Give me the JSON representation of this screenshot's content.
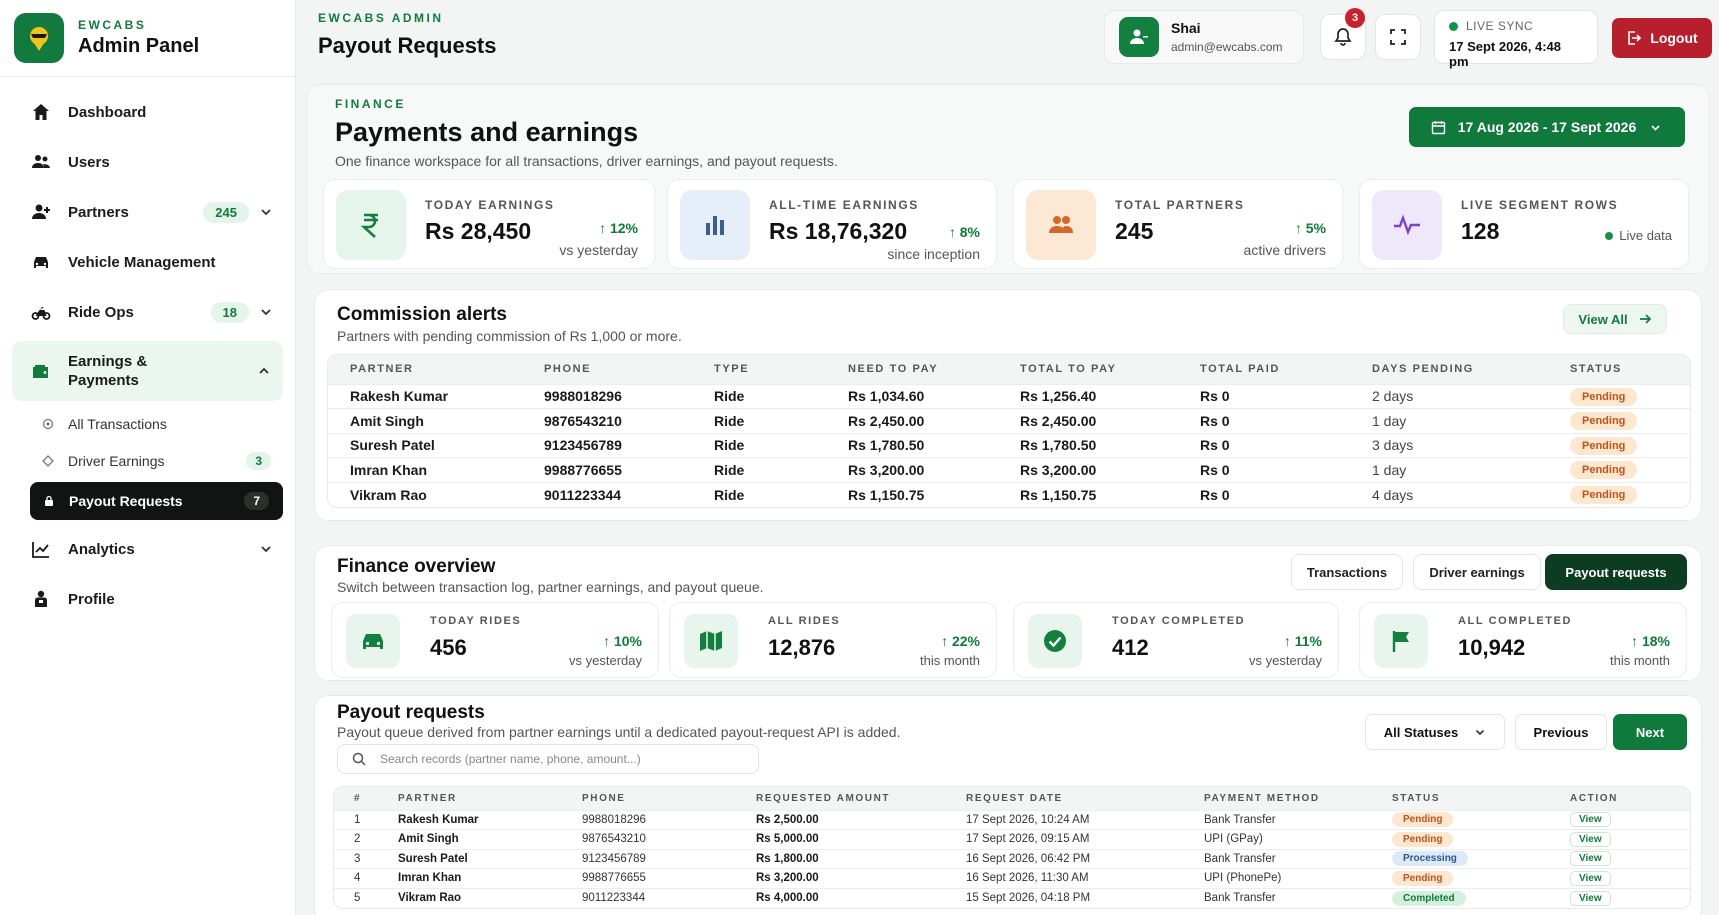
{
  "brand": {
    "small": "EWCABS",
    "title": "Admin Panel"
  },
  "sidebar": {
    "items": [
      {
        "label": "Dashboard"
      },
      {
        "label": "Users"
      },
      {
        "label": "Partners",
        "badge": "245"
      },
      {
        "label": "Vehicle Management"
      },
      {
        "label": "Ride Ops",
        "badge": "18"
      },
      {
        "label": "Earnings & Payments"
      },
      {
        "label": "Analytics"
      },
      {
        "label": "Profile"
      }
    ],
    "sub_items": [
      {
        "label": "All Transactions"
      },
      {
        "label": "Driver Earnings",
        "badge": "3"
      },
      {
        "label": "Payout Requests",
        "badge": "7"
      }
    ]
  },
  "header": {
    "small": "EWCABS ADMIN",
    "title": "Payout Requests",
    "user_name": "Shai",
    "user_email": "admin@ewcabs.com",
    "notifications": "3",
    "sync_label": "LIVE SYNC",
    "sync_time": "17 Sept 2026, 4:48 pm",
    "logout": "Logout"
  },
  "finance": {
    "eyebrow": "FINANCE",
    "title": "Payments and earnings",
    "desc": "One finance workspace for all transactions, driver earnings, and payout requests.",
    "date_range": "17 Aug 2026 - 17 Sept 2026",
    "stats": [
      {
        "label": "TODAY EARNINGS",
        "value": "Rs 28,450",
        "trend": "12%",
        "sub": "vs yesterday"
      },
      {
        "label": "ALL-TIME EARNINGS",
        "value": "Rs 18,76,320",
        "trend": "8%",
        "sub": "since inception"
      },
      {
        "label": "TOTAL PARTNERS",
        "value": "245",
        "trend": "5%",
        "sub": "active drivers"
      },
      {
        "label": "LIVE SEGMENT ROWS",
        "value": "128",
        "sub": "Live data"
      }
    ]
  },
  "commission": {
    "title": "Commission alerts",
    "desc": "Partners with pending commission of Rs 1,000 or more.",
    "view_all": "View All",
    "columns": [
      "PARTNER",
      "PHONE",
      "TYPE",
      "NEED TO PAY",
      "TOTAL TO PAY",
      "TOTAL PAID",
      "DAYS PENDING",
      "STATUS"
    ],
    "rows": [
      {
        "partner": "Rakesh Kumar",
        "phone": "9988018296",
        "type": "Ride",
        "need": "Rs 1,034.60",
        "total": "Rs 1,256.40",
        "paid": "Rs 0",
        "days": "2 days",
        "status": "Pending"
      },
      {
        "partner": "Amit Singh",
        "phone": "9876543210",
        "type": "Ride",
        "need": "Rs 2,450.00",
        "total": "Rs 2,450.00",
        "paid": "Rs 0",
        "days": "1 day",
        "status": "Pending"
      },
      {
        "partner": "Suresh Patel",
        "phone": "9123456789",
        "type": "Ride",
        "need": "Rs 1,780.50",
        "total": "Rs 1,780.50",
        "paid": "Rs 0",
        "days": "3 days",
        "status": "Pending"
      },
      {
        "partner": "Imran Khan",
        "phone": "9988776655",
        "type": "Ride",
        "need": "Rs 3,200.00",
        "total": "Rs 3,200.00",
        "paid": "Rs 0",
        "days": "1 day",
        "status": "Pending"
      },
      {
        "partner": "Vikram Rao",
        "phone": "9011223344",
        "type": "Ride",
        "need": "Rs 1,150.75",
        "total": "Rs 1,150.75",
        "paid": "Rs 0",
        "days": "4 days",
        "status": "Pending"
      }
    ]
  },
  "overview": {
    "title": "Finance overview",
    "desc": "Switch between transaction log, partner earnings, and payout queue.",
    "tabs": [
      "Transactions",
      "Driver earnings",
      "Payout requests"
    ],
    "stats": [
      {
        "label": "TODAY RIDES",
        "value": "456",
        "trend": "10%",
        "sub": "vs yesterday"
      },
      {
        "label": "ALL RIDES",
        "value": "12,876",
        "trend": "22%",
        "sub": "this month"
      },
      {
        "label": "TODAY COMPLETED",
        "value": "412",
        "trend": "11%",
        "sub": "vs yesterday"
      },
      {
        "label": "ALL COMPLETED",
        "value": "10,942",
        "trend": "18%",
        "sub": "this month"
      }
    ]
  },
  "payouts": {
    "title": "Payout requests",
    "desc": "Payout queue derived from partner earnings until a dedicated payout-request API is added.",
    "search_placeholder": "Search records (partner name, phone, amount...)",
    "status_filter": "All Statuses",
    "prev": "Previous",
    "next": "Next",
    "columns": [
      "#",
      "PARTNER",
      "PHONE",
      "REQUESTED AMOUNT",
      "REQUEST DATE",
      "PAYMENT METHOD",
      "STATUS",
      "ACTION"
    ],
    "action_label": "View",
    "rows": [
      {
        "n": "1",
        "partner": "Rakesh Kumar",
        "phone": "9988018296",
        "amount": "Rs 2,500.00",
        "date": "17 Sept 2026, 10:24 AM",
        "method": "Bank Transfer",
        "status": "Pending",
        "status_class": "pending"
      },
      {
        "n": "2",
        "partner": "Amit Singh",
        "phone": "9876543210",
        "amount": "Rs 5,000.00",
        "date": "17 Sept 2026, 09:15 AM",
        "method": "UPI (GPay)",
        "status": "Pending",
        "status_class": "pending"
      },
      {
        "n": "3",
        "partner": "Suresh Patel",
        "phone": "9123456789",
        "amount": "Rs 1,800.00",
        "date": "16 Sept 2026, 06:42 PM",
        "method": "Bank Transfer",
        "status": "Processing",
        "status_class": "processing"
      },
      {
        "n": "4",
        "partner": "Imran Khan",
        "phone": "9988776655",
        "amount": "Rs 3,200.00",
        "date": "16 Sept 2026, 11:30 AM",
        "method": "UPI (PhonePe)",
        "status": "Pending",
        "status_class": "pending"
      },
      {
        "n": "5",
        "partner": "Vikram Rao",
        "phone": "9011223344",
        "amount": "Rs 4,000.00",
        "date": "15 Sept 2026, 04:18 PM",
        "method": "Bank Transfer",
        "status": "Completed",
        "status_class": "completed"
      }
    ]
  }
}
